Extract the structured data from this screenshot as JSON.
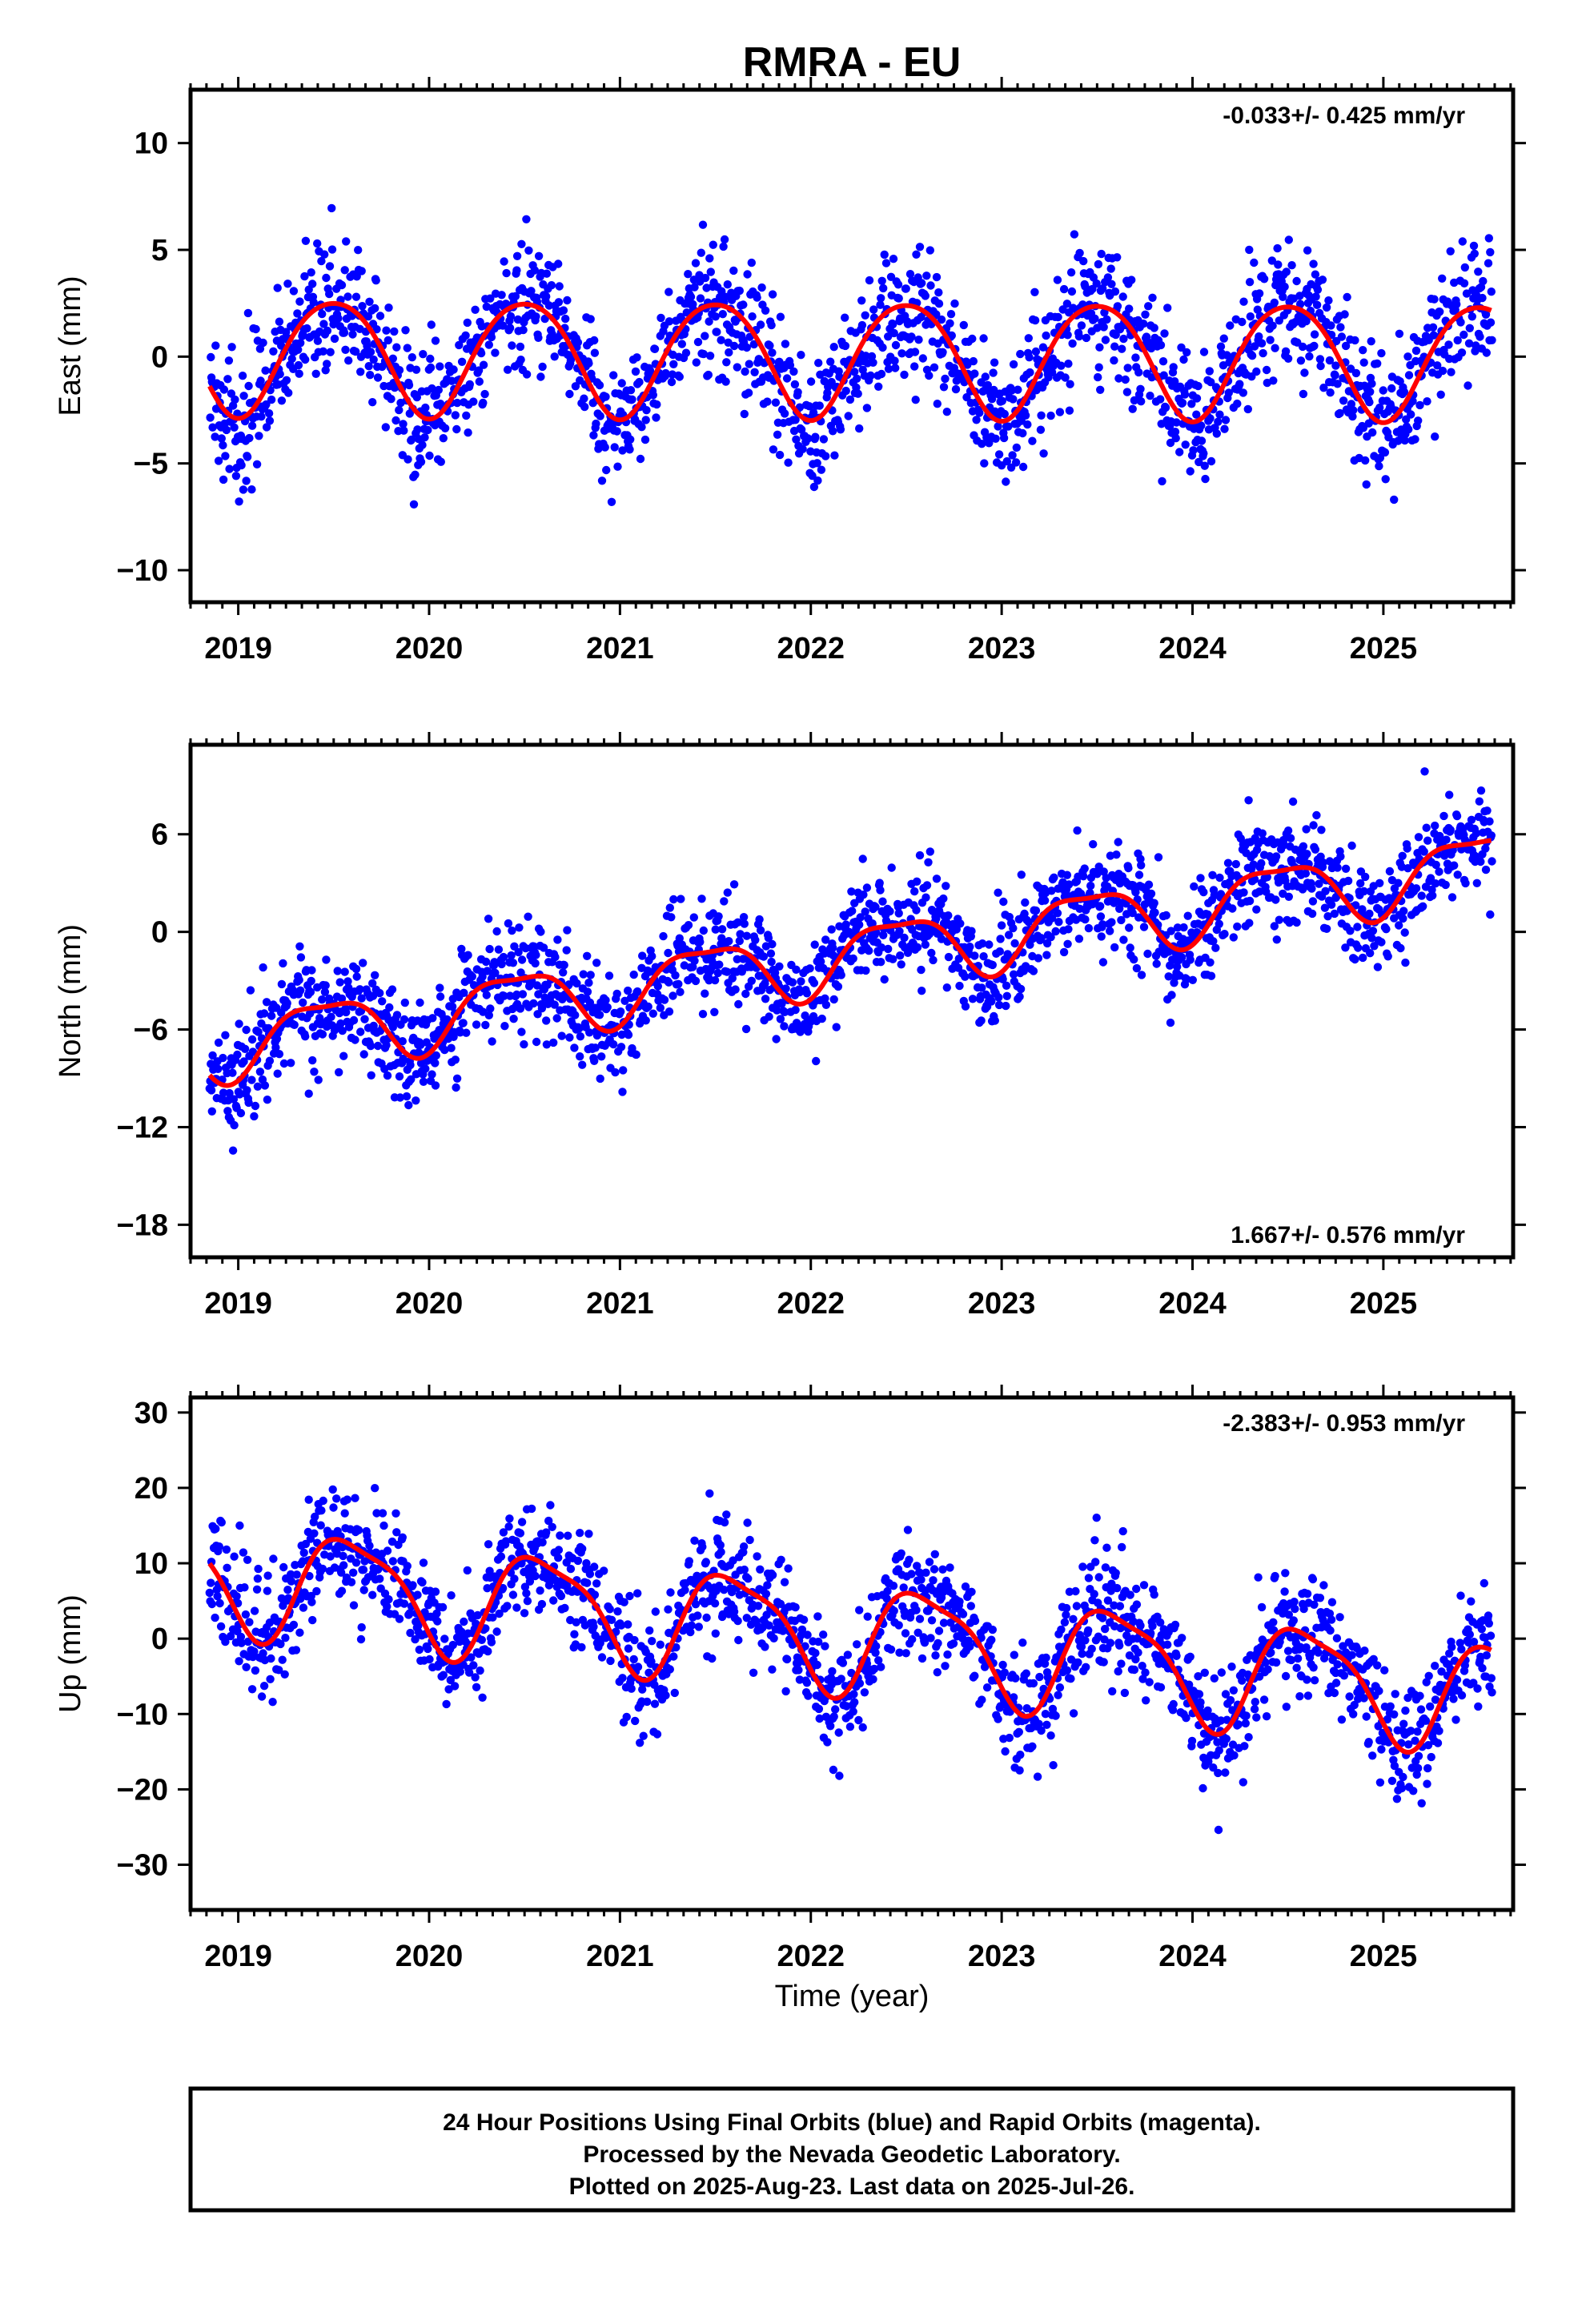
{
  "title": "RMRA - EU",
  "xlabel": "Time (year)",
  "footer": {
    "line1": "24 Hour Positions Using Final Orbits (blue) and Rapid Orbits (magenta).",
    "line2": "Processed by the Nevada Geodetic Laboratory.",
    "line3": "Plotted on 2025-Aug-23. Last data on 2025-Jul-26."
  },
  "colors": {
    "final_orbits": "#0000ff",
    "model_fit": "#ff0000",
    "frame": "#000000"
  },
  "chart_data": [
    {
      "type": "scatter",
      "component": "east",
      "ylabel": "East (mm)",
      "rate_text": "-0.033+/- 0.425 mm/yr",
      "rate_position": "top-right",
      "xlim": [
        2018.75,
        2025.68
      ],
      "ylim": [
        -11.5,
        12.5
      ],
      "xticks": [
        2019,
        2020,
        2021,
        2022,
        2023,
        2024,
        2025
      ],
      "xtick_labels": [
        "2019",
        "2020",
        "2021",
        "2022",
        "2023",
        "2024",
        "2025"
      ],
      "yticks": [
        -10,
        -5,
        0,
        5,
        10
      ],
      "ytick_labels": [
        "−10",
        "−5",
        "0",
        "5",
        "10"
      ],
      "grid": false,
      "data_range": [
        2018.85,
        2025.57
      ],
      "model": {
        "offset": 0,
        "trend": -0.033,
        "annual_amp": 2.7,
        "annual_peak": 0.5,
        "semi_amp": 0.3,
        "semi_peak": 0.25,
        "annual_ramp": [],
        "offsets": []
      },
      "noise": {
        "sd": 1.4,
        "season_sd": 1.0,
        "season_peak": 0.45
      },
      "series": [
        {
          "name": "Final Orbits (blue)",
          "role": "points"
        },
        {
          "name": "Rapid Orbits (magenta)",
          "role": "points"
        },
        {
          "name": "model fit",
          "role": "fit"
        }
      ]
    },
    {
      "type": "scatter",
      "component": "north",
      "ylabel": "North (mm)",
      "rate_text": "1.667+/- 0.576 mm/yr",
      "rate_position": "bottom-right",
      "xlim": [
        2018.75,
        2025.68
      ],
      "ylim": [
        -20,
        11.5
      ],
      "xticks": [
        2019,
        2020,
        2021,
        2022,
        2023,
        2024,
        2025
      ],
      "xtick_labels": [
        "2019",
        "2020",
        "2021",
        "2022",
        "2023",
        "2024",
        "2025"
      ],
      "yticks": [
        -18,
        -12,
        -6,
        0,
        6
      ],
      "ytick_labels": [
        "−18",
        "−12",
        "−6",
        "0",
        "6"
      ],
      "grid": false,
      "data_range": [
        2018.85,
        2025.57
      ],
      "model": {
        "offset": -1.4,
        "trend": 1.667,
        "annual_amp": 2.0,
        "annual_peak": 0.45,
        "semi_amp": 0.6,
        "semi_peak": 0.2,
        "annual_ramp": [],
        "offsets": []
      },
      "noise": {
        "sd": 1.6,
        "season_sd": 1.2,
        "season_peak": 0.55
      },
      "series": [
        {
          "name": "Final Orbits (blue)",
          "role": "points"
        },
        {
          "name": "Rapid Orbits (magenta)",
          "role": "points"
        },
        {
          "name": "model fit",
          "role": "fit"
        }
      ]
    },
    {
      "type": "scatter",
      "component": "up",
      "ylabel": "Up (mm)",
      "rate_text": "-2.383+/- 0.953 mm/yr",
      "rate_position": "top-right",
      "xlim": [
        2018.75,
        2025.68
      ],
      "ylim": [
        -36,
        32
      ],
      "xticks": [
        2019,
        2020,
        2021,
        2022,
        2023,
        2024,
        2025
      ],
      "xtick_labels": [
        "2019",
        "2020",
        "2021",
        "2022",
        "2023",
        "2024",
        "2025"
      ],
      "yticks": [
        -30,
        -20,
        -10,
        0,
        10,
        20,
        30
      ],
      "ytick_labels": [
        "−30",
        "−20",
        "−10",
        "0",
        "10",
        "20",
        "30"
      ],
      "grid": false,
      "data_range": [
        2018.85,
        2025.57
      ],
      "model": {
        "offset": 0.5,
        "trend": -2.383,
        "annual_amp": 7.0,
        "annual_peak": 0.6,
        "semi_amp": 1.8,
        "semi_peak": 0.4,
        "annual_ramp": [],
        "offsets": []
      },
      "noise": {
        "sd": 3.8,
        "season_sd": 2.0,
        "season_peak": 0.6
      },
      "series": [
        {
          "name": "Final Orbits (blue)",
          "role": "points"
        },
        {
          "name": "Rapid Orbits (magenta)",
          "role": "points"
        },
        {
          "name": "model fit",
          "role": "fit"
        }
      ]
    }
  ]
}
